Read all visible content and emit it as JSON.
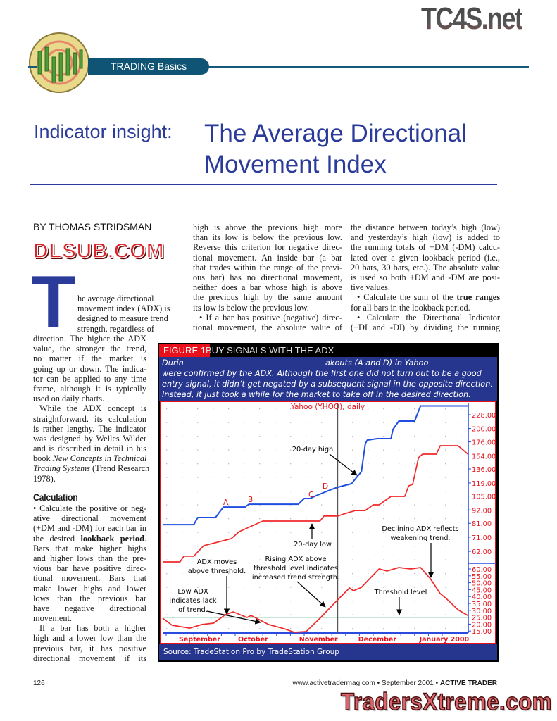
{
  "watermarks": {
    "top": "TC4S.net",
    "middle": "DLSUB.COM",
    "bottom": "TradersXtreme.com"
  },
  "section": {
    "label": "TRADING Basics",
    "logo_icon": "cactus-chart-logo-icon"
  },
  "title": {
    "kicker": "Indicator insight:",
    "line1": "The Average Directional",
    "line2": "Movement Index"
  },
  "byline": "BY THOMAS STRIDSMAN",
  "drop_cap": "T",
  "col1": {
    "drop_lines": [
      {
        "t": "he average directional"
      },
      {
        "t": "movement index (ADX) is"
      },
      {
        "t": "designed to measure trend"
      },
      {
        "t": "strength, regardless of"
      }
    ],
    "lines": [
      {
        "t": "direction. The higher the ADX",
        "w": "narrow"
      },
      {
        "t": "value, the stronger the trend,"
      },
      {
        "t": "no matter if the market is"
      },
      {
        "t": "going up or down. The indica-"
      },
      {
        "t": "tor can be applied to any time"
      },
      {
        "t": "frame, although it is typically"
      },
      {
        "t": "used on daily charts.",
        "last": true
      },
      {
        "t": "While the ADX concept is",
        "indent": true
      },
      {
        "t": "straightforward, its calculation"
      },
      {
        "t": "is rather lengthy. The indicator"
      },
      {
        "t": "was designed by Welles Wilder"
      },
      {
        "t": "and is described in detail in his"
      },
      {
        "parts": [
          {
            "t": "book "
          },
          {
            "t": "New Concepts in Technical",
            "st": "i"
          }
        ]
      },
      {
        "parts": [
          {
            "t": "Trading Systems",
            "st": "i"
          },
          {
            "t": " (Trend Research"
          }
        ]
      },
      {
        "t": "1978).",
        "last": true
      }
    ],
    "heading": "Calculation",
    "calc_lines": [
      {
        "t": "• Calculate the positive or neg-"
      },
      {
        "t": "ative directional movement"
      },
      {
        "t": "(+DM and -DM) for each bar in"
      },
      {
        "parts": [
          {
            "t": "the desired "
          },
          {
            "t": "lookback period",
            "st": "b"
          },
          {
            "t": "."
          }
        ]
      },
      {
        "t": "Bars that make higher highs"
      },
      {
        "t": "and higher lows than the pre-"
      },
      {
        "t": "vious bar have positive direc-"
      },
      {
        "t": "tional movement. Bars that"
      },
      {
        "t": "make lower highs and lower"
      },
      {
        "t": "lows than the previous bar"
      },
      {
        "t": "have negative directional"
      },
      {
        "t": "movement.",
        "last": true
      },
      {
        "t": "If a bar has both a higher",
        "indent": true
      },
      {
        "t": "high and a lower low than the"
      },
      {
        "t": "previous bar, it has positive"
      },
      {
        "t": "directional movement if its"
      }
    ]
  },
  "col2": {
    "lines": [
      {
        "t": "high is above the previous high more"
      },
      {
        "t": "than its low is below the previous low."
      },
      {
        "t": "Reverse this criterion for negative direc-"
      },
      {
        "t": "tional movement. An inside bar (a bar"
      },
      {
        "t": "that trades within the range of the previ-"
      },
      {
        "t": "ous bar) has no directional movement,"
      },
      {
        "t": "neither does a bar whose high is above"
      },
      {
        "t": "the previous high by the same amount"
      },
      {
        "t": "its low is below the previous low.",
        "last": true
      },
      {
        "t": "• If a bar has positive (negative) direc-",
        "indent": true
      },
      {
        "t": "tional movement, the absolute value of"
      }
    ]
  },
  "col3": {
    "lines": [
      {
        "t": "the distance between today’s high (low)"
      },
      {
        "t": "and yesterday’s high (low) is added to"
      },
      {
        "t": "the running totals of +DM (-DM) calcu-"
      },
      {
        "t": "lated over a given lookback period (i.e.,"
      },
      {
        "t": "20 bars, 30 bars, etc.). The absolute value"
      },
      {
        "t": "is used so both +DM and -DM are posi-"
      },
      {
        "t": "tive values.",
        "last": true
      },
      {
        "parts": [
          {
            "t": "• Calculate the sum of the "
          },
          {
            "t": "true ranges",
            "st": "b"
          }
        ],
        "indent": true
      },
      {
        "t": "for all bars in the lookback period.",
        "last": true
      },
      {
        "t": "• Calculate the Directional Indicator",
        "indent": true
      },
      {
        "t": "(+DI and -DI) by dividing the running"
      }
    ]
  },
  "figure": {
    "tag": "FIGURE 1",
    "title": "BUY SIGNALS WITH THE ADX",
    "caption_lines": [
      {
        "a": "Durin",
        "b": "akouts (A and D) in Yahoo"
      },
      {
        "a": "were confirmed by the ADX. Although the first one did not turn out to be a good"
      },
      {
        "a": "entry signal, it didn’t get negated by a subsequent signal in the opposite direction."
      },
      {
        "a": "Instead, it just took a while for the market to take off in the desired direction."
      }
    ],
    "source": "Source: TradeStation Pro by TradeStation Group"
  },
  "chart_data": {
    "type": "line",
    "title": "Yahoo (YHOO), daily",
    "price_scale": "log",
    "price_ticks": [
      "228.00",
      "200.00",
      "176.00",
      "154.00",
      "136.00",
      "119.00",
      "105.00",
      "92.00",
      "81.00",
      "71.00",
      "62.00"
    ],
    "adx_ticks": [
      "60.00",
      "55.00",
      "50.00",
      "45.00",
      "40.00",
      "35.00",
      "30.00",
      "25.00",
      "20.00",
      "15.00"
    ],
    "x_labels": [
      {
        "label": "September",
        "date": "1999-09-01"
      },
      {
        "label": "October",
        "date": "1999-10-01"
      },
      {
        "label": "November",
        "date": "1999-11-01"
      },
      {
        "label": "December",
        "date": "1999-12-01"
      },
      {
        "label": "January 2000",
        "date": "2000-01-01"
      }
    ],
    "grid": "dotted",
    "threshold": 25,
    "marker_date": "1999-11-22",
    "colors": {
      "high": "#1f4fe0",
      "low": "#f02a2a",
      "adx": "#f02a2a",
      "threshold": "#1a9a5a",
      "labels": "#e8101a",
      "axis": "#2a4ae0"
    },
    "series": [
      {
        "name": "20-day high",
        "points": [
          [
            "1999-08-25",
            80
          ],
          [
            "1999-09-10",
            80
          ],
          [
            "1999-09-12",
            85.6
          ],
          [
            "1999-09-21",
            85.6
          ],
          [
            "1999-09-25",
            94.6
          ],
          [
            "1999-10-06",
            94.6
          ],
          [
            "1999-10-08",
            97.2
          ],
          [
            "1999-11-02",
            97.2
          ],
          [
            "1999-11-05",
            102.6
          ],
          [
            "1999-11-08",
            102.6
          ],
          [
            "1999-11-11",
            105.4
          ],
          [
            "1999-11-19",
            112
          ],
          [
            "1999-11-22",
            114.2
          ],
          [
            "1999-11-29",
            118.1
          ],
          [
            "1999-12-01",
            123.8
          ],
          [
            "1999-12-04",
            132.4
          ],
          [
            "1999-12-06",
            173
          ],
          [
            "1999-12-07",
            179
          ],
          [
            "1999-12-12",
            181.5
          ],
          [
            "1999-12-19",
            181.5
          ],
          [
            "1999-12-20",
            198
          ],
          [
            "1999-12-23",
            214.7
          ],
          [
            "1999-12-31",
            214.7
          ],
          [
            "2000-01-03",
            248
          ],
          [
            "2000-01-27",
            248
          ]
        ]
      },
      {
        "name": "20-day low",
        "points": [
          [
            "1999-08-25",
            56.1
          ],
          [
            "1999-09-03",
            56.1
          ],
          [
            "1999-09-05",
            59.2
          ],
          [
            "1999-09-10",
            59.2
          ],
          [
            "1999-09-15",
            65.4
          ],
          [
            "1999-09-29",
            70
          ],
          [
            "1999-10-03",
            74.8
          ],
          [
            "1999-10-15",
            82.8
          ],
          [
            "1999-11-13",
            82.8
          ],
          [
            "1999-11-15",
            86.8
          ],
          [
            "1999-11-22",
            86.8
          ],
          [
            "1999-11-25",
            88.5
          ],
          [
            "1999-12-01",
            91.5
          ],
          [
            "1999-12-06",
            91.5
          ],
          [
            "1999-12-10",
            96.6
          ],
          [
            "1999-12-13",
            96.6
          ],
          [
            "1999-12-19",
            104.7
          ],
          [
            "1999-12-26",
            104.7
          ],
          [
            "1999-12-28",
            115.8
          ],
          [
            "1999-12-30",
            117.4
          ],
          [
            "2000-01-02",
            151.4
          ],
          [
            "2000-01-04",
            156.6
          ],
          [
            "2000-01-11",
            156.6
          ],
          [
            "2000-01-13",
            169.7
          ],
          [
            "2000-01-22",
            169.7
          ],
          [
            "2000-01-25",
            161.9
          ],
          [
            "2000-01-27",
            156.6
          ]
        ]
      },
      {
        "name": "ADX",
        "points": [
          [
            "1999-08-23",
            24.3
          ],
          [
            "1999-08-30",
            19.2
          ],
          [
            "1999-09-08",
            17.1
          ],
          [
            "1999-09-14",
            19.7
          ],
          [
            "1999-09-20",
            20.7
          ],
          [
            "1999-09-26",
            26.8
          ],
          [
            "1999-09-30",
            28.9
          ],
          [
            "1999-10-07",
            24.8
          ],
          [
            "1999-10-09",
            26.3
          ],
          [
            "1999-10-18",
            19.7
          ],
          [
            "1999-10-26",
            16.6
          ],
          [
            "1999-10-31",
            14.1
          ],
          [
            "1999-11-06",
            14.6
          ],
          [
            "1999-11-13",
            24.3
          ],
          [
            "1999-11-22",
            37.6
          ],
          [
            "1999-11-28",
            46.2
          ],
          [
            "1999-11-30",
            44.2
          ],
          [
            "1999-12-04",
            46.7
          ],
          [
            "1999-12-13",
            60
          ],
          [
            "1999-12-17",
            58.5
          ],
          [
            "1999-12-23",
            61
          ],
          [
            "1999-12-29",
            60
          ],
          [
            "2000-01-03",
            61
          ],
          [
            "2000-01-08",
            52.9
          ],
          [
            "2000-01-13",
            42.1
          ],
          [
            "2000-01-16",
            38.6
          ],
          [
            "2000-01-22",
            30.4
          ],
          [
            "2000-01-27",
            26.3
          ]
        ]
      }
    ],
    "point_labels": [
      "A",
      "B",
      "C",
      "D"
    ],
    "annotations": {
      "high": [
        "20-day high"
      ],
      "low": [
        "20-day low"
      ],
      "adx_moves": [
        "ADX moves",
        "above threshold."
      ],
      "rising": [
        "Rising ADX above",
        "threshold level indicates",
        "increased trend strength."
      ],
      "low_adx": [
        "Low ADX",
        "indicates lack",
        "of trend."
      ],
      "declining": [
        "Declining ADX reflects",
        "weakening trend."
      ],
      "threshold": [
        "Threshold level"
      ]
    }
  },
  "footer": {
    "page": "126",
    "site": "www.activetradermag.com • September 2001 • ",
    "magazine": "ACTIVE TRADER"
  }
}
